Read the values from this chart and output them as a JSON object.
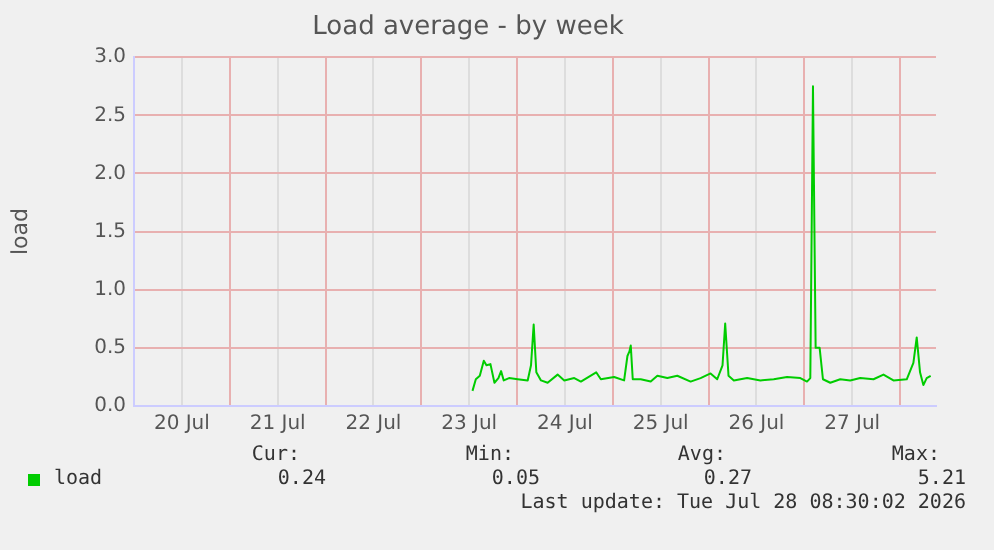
{
  "chart_data": {
    "type": "line",
    "title": "Load average - by week",
    "ylabel": "load",
    "x": [
      "2026-07-23T12:50",
      "2026-07-23T13:40",
      "2026-07-23T14:40",
      "2026-07-23T15:40",
      "2026-07-23T16:20",
      "2026-07-23T17:20",
      "2026-07-23T18:20",
      "2026-07-23T19:20",
      "2026-07-23T20:00",
      "2026-07-23T20:40",
      "2026-07-23T22:00",
      "2026-07-24T00:10",
      "2026-07-24T02:40",
      "2026-07-24T03:30",
      "2026-07-24T04:10",
      "2026-07-24T04:50",
      "2026-07-24T06:00",
      "2026-07-24T07:40",
      "2026-07-24T10:10",
      "2026-07-24T11:50",
      "2026-07-24T14:20",
      "2026-07-24T16:00",
      "2026-07-24T19:50",
      "2026-07-24T21:00",
      "2026-07-25T00:20",
      "2026-07-25T02:50",
      "2026-07-25T03:40",
      "2026-07-25T04:10",
      "2026-07-25T04:30",
      "2026-07-25T05:00",
      "2026-07-25T07:00",
      "2026-07-25T09:30",
      "2026-07-25T11:10",
      "2026-07-25T13:40",
      "2026-07-25T16:10",
      "2026-07-25T19:30",
      "2026-07-25T22:00",
      "2026-07-26T00:30",
      "2026-07-26T02:10",
      "2026-07-26T03:30",
      "2026-07-26T04:10",
      "2026-07-26T05:00",
      "2026-07-26T06:20",
      "2026-07-26T09:40",
      "2026-07-26T13:00",
      "2026-07-26T16:20",
      "2026-07-26T19:40",
      "2026-07-26T23:00",
      "2026-07-27T00:40",
      "2026-07-27T01:30",
      "2026-07-27T02:10",
      "2026-07-27T02:50",
      "2026-07-27T03:50",
      "2026-07-27T04:40",
      "2026-07-27T06:30",
      "2026-07-27T09:00",
      "2026-07-27T11:30",
      "2026-07-27T14:00",
      "2026-07-27T17:20",
      "2026-07-27T19:50",
      "2026-07-27T22:20",
      "2026-07-28T01:40",
      "2026-07-28T03:20",
      "2026-07-28T04:10",
      "2026-07-28T05:00",
      "2026-07-28T05:50",
      "2026-07-28T06:40",
      "2026-07-28T07:40"
    ],
    "series": [
      {
        "name": "load",
        "color": "#00cc00",
        "values": [
          0.13,
          0.23,
          0.26,
          0.39,
          0.35,
          0.36,
          0.2,
          0.24,
          0.3,
          0.22,
          0.24,
          0.23,
          0.22,
          0.35,
          0.7,
          0.29,
          0.22,
          0.2,
          0.27,
          0.22,
          0.24,
          0.21,
          0.29,
          0.23,
          0.25,
          0.22,
          0.43,
          0.47,
          0.52,
          0.23,
          0.23,
          0.21,
          0.26,
          0.24,
          0.26,
          0.21,
          0.24,
          0.28,
          0.23,
          0.35,
          0.71,
          0.26,
          0.22,
          0.24,
          0.22,
          0.23,
          0.25,
          0.24,
          0.21,
          0.24,
          2.75,
          0.5,
          0.5,
          0.23,
          0.2,
          0.23,
          0.22,
          0.24,
          0.23,
          0.27,
          0.22,
          0.23,
          0.37,
          0.59,
          0.29,
          0.18,
          0.24,
          0.26
        ]
      }
    ],
    "xlim": [
      "2026-07-20T00:00",
      "2026-07-28T09:00"
    ],
    "xticks": [
      {
        "value": "2026-07-20T12:00",
        "label": "20 Jul"
      },
      {
        "value": "2026-07-21T00:00",
        "label": null
      },
      {
        "value": "2026-07-21T12:00",
        "label": "21 Jul"
      },
      {
        "value": "2026-07-22T00:00",
        "label": null
      },
      {
        "value": "2026-07-22T12:00",
        "label": "22 Jul"
      },
      {
        "value": "2026-07-23T00:00",
        "label": null
      },
      {
        "value": "2026-07-23T12:00",
        "label": "23 Jul"
      },
      {
        "value": "2026-07-24T00:00",
        "label": null
      },
      {
        "value": "2026-07-24T12:00",
        "label": "24 Jul"
      },
      {
        "value": "2026-07-25T00:00",
        "label": null
      },
      {
        "value": "2026-07-25T12:00",
        "label": "25 Jul"
      },
      {
        "value": "2026-07-26T00:00",
        "label": null
      },
      {
        "value": "2026-07-26T12:00",
        "label": "26 Jul"
      },
      {
        "value": "2026-07-27T00:00",
        "label": null
      },
      {
        "value": "2026-07-27T12:00",
        "label": "27 Jul"
      },
      {
        "value": "2026-07-28T00:00",
        "label": null
      }
    ],
    "ylim": [
      0,
      3
    ],
    "yticks": [
      {
        "value": 0,
        "label": "0.0"
      },
      {
        "value": 0.5,
        "label": "0.5"
      },
      {
        "value": 1,
        "label": "1.0"
      },
      {
        "value": 1.5,
        "label": "1.5"
      },
      {
        "value": 2,
        "label": "2.0"
      },
      {
        "value": 2.5,
        "label": "2.5"
      },
      {
        "value": 3,
        "label": "3.0"
      }
    ],
    "grid": true,
    "legend": "bottom",
    "marker": "none",
    "line_style": "solid",
    "annotations": [
      "Cur:",
      "Min:",
      "Avg:",
      "Max:",
      "0.24",
      "0.05",
      "0.27",
      "5.21",
      "Last update: Tue Jul 28 08:30:02 2026"
    ]
  }
}
